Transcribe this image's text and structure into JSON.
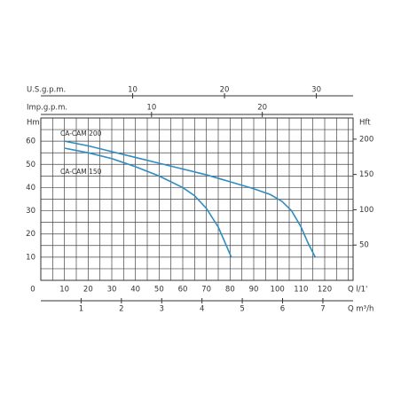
{
  "chart_data": {
    "type": "line",
    "xlabel": "Q  l/1'",
    "ylabel": "Hm",
    "y2label": "Hft",
    "x2label": "U.S.g.p.m.",
    "x3label": "Imp.g.p.m.",
    "x4label": "Q  m³/h",
    "xlim": [
      0,
      132
    ],
    "xticks": [
      0,
      10,
      20,
      30,
      40,
      50,
      60,
      70,
      80,
      90,
      100,
      110,
      120
    ],
    "ylim": [
      0,
      70
    ],
    "yticks": [
      10,
      20,
      30,
      40,
      50,
      60
    ],
    "y2lim": [
      0,
      230
    ],
    "y2ticks": [
      50,
      100,
      150,
      200
    ],
    "x2lim": [
      0,
      34
    ],
    "x2ticks": [
      10,
      20,
      30
    ],
    "x3lim": [
      0,
      28.2
    ],
    "x3ticks": [
      10,
      20
    ],
    "x4lim": [
      0,
      7.75
    ],
    "x4ticks": [
      1,
      2,
      3,
      4,
      5,
      6,
      7
    ],
    "xgrid": [
      0,
      5,
      10,
      15,
      20,
      25,
      30,
      35,
      40,
      45,
      50,
      55,
      60,
      65,
      70,
      75,
      80,
      85,
      90,
      95,
      100,
      105,
      110,
      115,
      120,
      125,
      130
    ],
    "ygrid": [
      5,
      10,
      15,
      20,
      25,
      30,
      35,
      40,
      45,
      50,
      55,
      60,
      65
    ],
    "series": [
      {
        "name": "CA-CAM 200",
        "color": "#2f8cc2",
        "x": [
          10,
          20,
          30,
          40,
          50,
          60,
          70,
          80,
          90,
          97,
          102,
          106,
          110,
          113,
          116
        ],
        "values": [
          60,
          58,
          55.5,
          53,
          50.5,
          48,
          45.5,
          42.5,
          39.5,
          37,
          34,
          30,
          23,
          16,
          10
        ]
      },
      {
        "name": "CA-CAM 150",
        "color": "#2f8cc2",
        "x": [
          10,
          20,
          30,
          40,
          50,
          60,
          65,
          70,
          75,
          78,
          80.5
        ],
        "values": [
          57,
          55,
          52.5,
          49,
          45,
          40,
          36.5,
          31,
          23,
          16,
          10
        ]
      }
    ]
  }
}
